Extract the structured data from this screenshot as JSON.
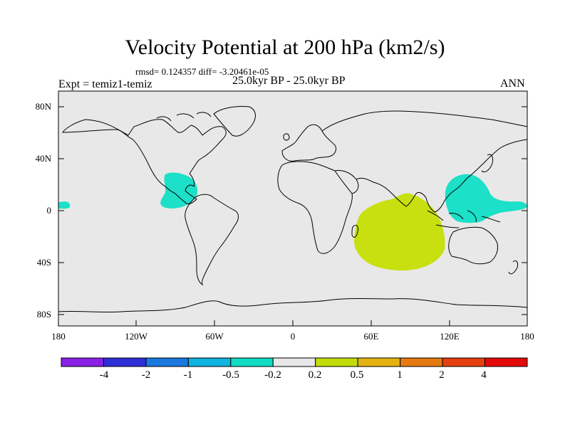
{
  "title": "Velocity Potential at 200 hPa (km2/s)",
  "stats": "rmsd= 0.124357 diff= -3.20461e-05",
  "experiment": "Expt = temiz1-temiz",
  "period": "25.0kyr BP - 25.0kyr BP",
  "season": "ANN",
  "lat_labels": [
    "80N",
    "40N",
    "0",
    "40S",
    "80S"
  ],
  "lon_labels": [
    "180",
    "120W",
    "60W",
    "0",
    "60E",
    "120E",
    "180"
  ],
  "colorbar": {
    "labels": [
      "-4",
      "-2",
      "-1",
      "-0.5",
      "-0.2",
      "0.2",
      "0.5",
      "1",
      "2",
      "4"
    ],
    "colors": [
      "#8a22e6",
      "#2f2fd8",
      "#1a78de",
      "#10b4e0",
      "#12dcc4",
      "#e8e8e8",
      "#c2dc0a",
      "#e4b210",
      "#e47a10",
      "#e44010",
      "#e40a0a"
    ]
  },
  "map_colors": {
    "ocean_bg": "#e8e8e8",
    "negative_region": "#1ce0c8",
    "positive_region": "#c8e010",
    "coast": "#000000"
  }
}
